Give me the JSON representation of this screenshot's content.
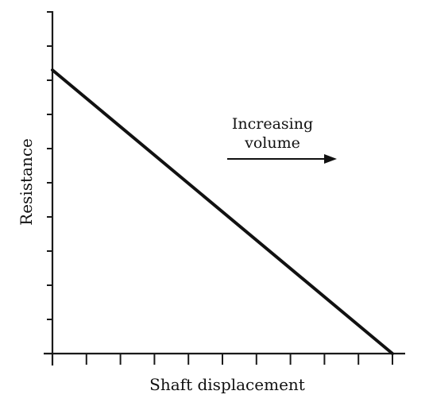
{
  "chart_data": {
    "type": "line",
    "title": "",
    "xlabel": "Shaft displacement",
    "ylabel": "Resistance",
    "xlim": [
      0,
      10
    ],
    "ylim": [
      0,
      10
    ],
    "x_ticks": [
      0,
      1,
      2,
      3,
      4,
      5,
      6,
      7,
      8,
      9,
      10
    ],
    "y_ticks": [
      0,
      1,
      2,
      3,
      4,
      5,
      6,
      7,
      8,
      9,
      10
    ],
    "tick_labels_shown": false,
    "grid": false,
    "series": [
      {
        "x": [
          0,
          10
        ],
        "y": [
          8.3,
          0
        ]
      }
    ],
    "annotation": {
      "lines": [
        "Increasing",
        "volume"
      ],
      "arrow_direction": "right"
    }
  }
}
